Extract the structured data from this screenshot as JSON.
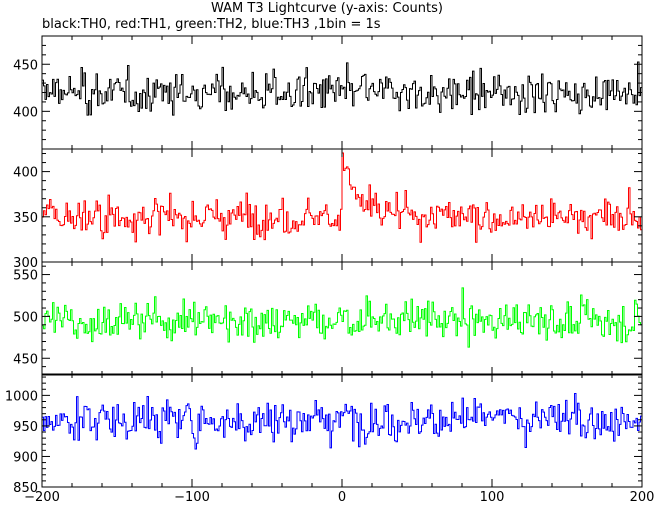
{
  "title": "WAM T3 Lightcurve (y-axis: Counts)",
  "subtitle": "black:TH0, red:TH1, green:TH2, blue:TH3 ,1bin = 1s",
  "chart_data": {
    "type": "line",
    "xlim": [
      -200,
      200
    ],
    "x_ticks": [
      -200,
      -100,
      0,
      100,
      200
    ],
    "x_tick_labels": [
      "−200",
      "−100",
      "0",
      "100",
      "200"
    ],
    "bin_seconds": 1,
    "panels": [
      {
        "name": "TH0",
        "color": "#000000",
        "ylim": [
          360,
          480
        ],
        "y_ticks": [
          400,
          450
        ],
        "mean": 420,
        "noise": 19,
        "features": []
      },
      {
        "name": "TH1",
        "color": "#ff0000",
        "ylim": [
          300,
          425
        ],
        "y_ticks": [
          300,
          350,
          400
        ],
        "mean": 350,
        "noise": 19,
        "features": [
          {
            "t": 0,
            "peak": 420,
            "decay_s": 8
          }
        ]
      },
      {
        "name": "TH2",
        "color": "#00ff00",
        "ylim": [
          430,
          565
        ],
        "y_ticks": [
          450,
          500,
          550
        ],
        "mean": 495,
        "noise": 22,
        "features": []
      },
      {
        "name": "TH3",
        "color": "#0000ff",
        "ylim": [
          850,
          1035
        ],
        "y_ticks": [
          850,
          900,
          950,
          1000
        ],
        "mean": 960,
        "noise": 31,
        "features": []
      }
    ]
  }
}
